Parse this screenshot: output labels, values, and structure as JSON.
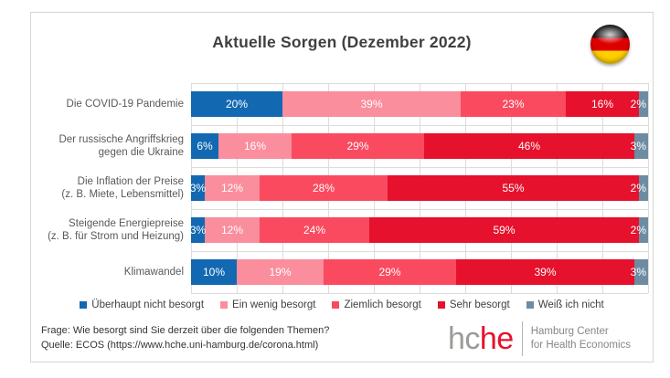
{
  "title": "Aktuelle Sorgen (Dezember 2022)",
  "flag": {
    "stripe_colors": [
      "#1a1a1a",
      "#dd0000",
      "#ffce00"
    ]
  },
  "chart_data": {
    "type": "bar",
    "stacked": true,
    "orientation": "horizontal",
    "title": "Aktuelle Sorgen (Dezember 2022)",
    "categories": [
      "Die COVID-19 Pandemie",
      "Der russische Angriffskrieg\ngegen die Ukraine",
      "Die Inflation der Preise\n(z. B. Miete, Lebensmittel)",
      "Steigende Energiepreise\n(z. B. für Strom und Heizung)",
      "Klimawandel"
    ],
    "series": [
      {
        "name": "Überhaupt nicht besorgt",
        "color": "#1269b2",
        "values": [
          20,
          6,
          3,
          3,
          10
        ]
      },
      {
        "name": "Ein wenig besorgt",
        "color": "#fa8e9d",
        "values": [
          39,
          16,
          12,
          12,
          19
        ]
      },
      {
        "name": "Ziemlich besorgt",
        "color": "#fa4a5f",
        "values": [
          23,
          29,
          28,
          24,
          29
        ]
      },
      {
        "name": "Sehr besorgt",
        "color": "#e6112c",
        "values": [
          16,
          46,
          55,
          59,
          39
        ]
      },
      {
        "name": "Weiß ich nicht",
        "color": "#6d8ca1",
        "values": [
          2,
          3,
          2,
          2,
          3
        ]
      }
    ],
    "xlim": [
      0,
      100
    ],
    "value_label_suffix": "%",
    "gridlines": "vertical every 10%, horizontal between categories",
    "legend_position": "bottom"
  },
  "footer": {
    "question": "Frage: Wie besorgt sind Sie derzeit über die folgenden Themen?",
    "source": "Quelle: ECOS (https://www.hche.uni-hamburg.de/corona.html)"
  },
  "logo": {
    "part1": "hc",
    "part2": "he",
    "org_line1": "Hamburg Center",
    "org_line2": "for Health Economics"
  }
}
